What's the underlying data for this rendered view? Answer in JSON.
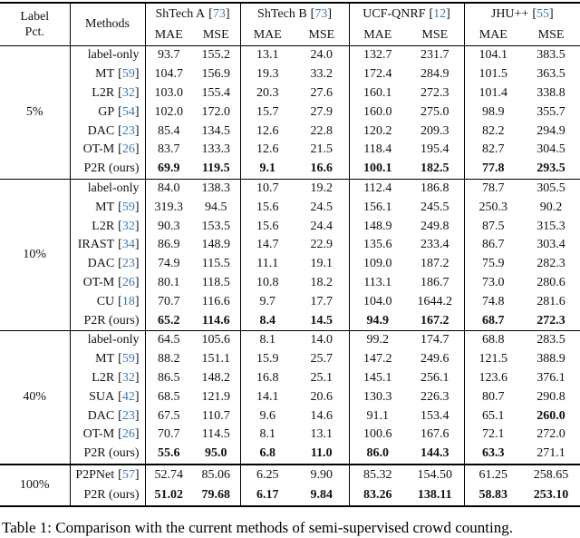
{
  "table": {
    "header": {
      "label_pct_line1": "Label",
      "label_pct_line2": "Pct.",
      "methods": "Methods",
      "metrics": [
        "MAE",
        "MSE"
      ],
      "datasets": [
        {
          "name": "ShTech A",
          "cite": "73"
        },
        {
          "name": "ShTech B",
          "cite": "73"
        },
        {
          "name": "UCF-QNRF",
          "cite": "12"
        },
        {
          "name": "JHU++",
          "cite": "55"
        }
      ]
    },
    "blocks": [
      {
        "pct": "5%",
        "rows": [
          {
            "method": "label-only",
            "cite": null,
            "values": [
              "93.7",
              "155.2",
              "13.1",
              "24.0",
              "132.7",
              "231.7",
              "104.1",
              "383.5"
            ],
            "bold": []
          },
          {
            "method": "MT",
            "cite": "59",
            "values": [
              "104.7",
              "156.9",
              "19.3",
              "33.2",
              "172.4",
              "284.9",
              "101.5",
              "363.5"
            ],
            "bold": []
          },
          {
            "method": "L2R",
            "cite": "32",
            "values": [
              "103.0",
              "155.4",
              "20.3",
              "27.6",
              "160.1",
              "272.3",
              "101.4",
              "338.8"
            ],
            "bold": []
          },
          {
            "method": "GP",
            "cite": "54",
            "values": [
              "102.0",
              "172.0",
              "15.7",
              "27.9",
              "160.0",
              "275.0",
              "98.9",
              "355.7"
            ],
            "bold": []
          },
          {
            "method": "DAC",
            "cite": "23",
            "values": [
              "85.4",
              "134.5",
              "12.6",
              "22.8",
              "120.2",
              "209.3",
              "82.2",
              "294.9"
            ],
            "bold": []
          },
          {
            "method": "OT-M",
            "cite": "26",
            "values": [
              "83.7",
              "133.3",
              "12.6",
              "21.5",
              "118.4",
              "195.4",
              "82.7",
              "304.5"
            ],
            "bold": []
          },
          {
            "method": "P2R (ours)",
            "cite": null,
            "values": [
              "69.9",
              "119.5",
              "9.1",
              "16.6",
              "100.1",
              "182.5",
              "77.8",
              "293.5"
            ],
            "bold": [
              0,
              1,
              2,
              3,
              4,
              5,
              6,
              7
            ]
          }
        ]
      },
      {
        "pct": "10%",
        "rows": [
          {
            "method": "label-only",
            "cite": null,
            "values": [
              "84.0",
              "138.3",
              "10.7",
              "19.2",
              "112.4",
              "186.8",
              "78.7",
              "305.5"
            ],
            "bold": []
          },
          {
            "method": "MT",
            "cite": "59",
            "values": [
              "319.3",
              "94.5",
              "15.6",
              "24.5",
              "156.1",
              "245.5",
              "250.3",
              "90.2"
            ],
            "bold": []
          },
          {
            "method": "L2R",
            "cite": "32",
            "values": [
              "90.3",
              "153.5",
              "15.6",
              "24.4",
              "148.9",
              "249.8",
              "87.5",
              "315.3"
            ],
            "bold": []
          },
          {
            "method": "IRAST",
            "cite": "34",
            "values": [
              "86.9",
              "148.9",
              "14.7",
              "22.9",
              "135.6",
              "233.4",
              "86.7",
              "303.4"
            ],
            "bold": []
          },
          {
            "method": "DAC",
            "cite": "23",
            "values": [
              "74.9",
              "115.5",
              "11.1",
              "19.1",
              "109.0",
              "187.2",
              "75.9",
              "282.3"
            ],
            "bold": []
          },
          {
            "method": "OT-M",
            "cite": "26",
            "values": [
              "80.1",
              "118.5",
              "10.8",
              "18.2",
              "113.1",
              "186.7",
              "73.0",
              "280.6"
            ],
            "bold": []
          },
          {
            "method": "CU",
            "cite": "18",
            "values": [
              "70.7",
              "116.6",
              "9.7",
              "17.7",
              "104.0",
              "1644.2",
              "74.8",
              "281.6"
            ],
            "bold": []
          },
          {
            "method": "P2R (ours)",
            "cite": null,
            "values": [
              "65.2",
              "114.6",
              "8.4",
              "14.5",
              "94.9",
              "167.2",
              "68.7",
              "272.3"
            ],
            "bold": [
              0,
              1,
              2,
              3,
              4,
              5,
              6,
              7
            ]
          }
        ]
      },
      {
        "pct": "40%",
        "rows": [
          {
            "method": "label-only",
            "cite": null,
            "values": [
              "64.5",
              "105.6",
              "8.1",
              "14.0",
              "99.2",
              "174.7",
              "68.8",
              "283.5"
            ],
            "bold": []
          },
          {
            "method": "MT",
            "cite": "59",
            "values": [
              "88.2",
              "151.1",
              "15.9",
              "25.7",
              "147.2",
              "249.6",
              "121.5",
              "388.9"
            ],
            "bold": []
          },
          {
            "method": "L2R",
            "cite": "32",
            "values": [
              "86.5",
              "148.2",
              "16.8",
              "25.1",
              "145.1",
              "256.1",
              "123.6",
              "376.1"
            ],
            "bold": []
          },
          {
            "method": "SUA",
            "cite": "42",
            "values": [
              "68.5",
              "121.9",
              "14.1",
              "20.6",
              "130.3",
              "226.3",
              "80.7",
              "290.8"
            ],
            "bold": []
          },
          {
            "method": "DAC",
            "cite": "23",
            "values": [
              "67.5",
              "110.7",
              "9.6",
              "14.6",
              "91.1",
              "153.4",
              "65.1",
              "260.0"
            ],
            "bold": [
              7
            ]
          },
          {
            "method": "OT-M",
            "cite": "26",
            "values": [
              "70.7",
              "114.5",
              "8.1",
              "13.1",
              "100.6",
              "167.6",
              "72.1",
              "272.0"
            ],
            "bold": []
          },
          {
            "method": "P2R (ours)",
            "cite": null,
            "values": [
              "55.6",
              "95.0",
              "6.8",
              "11.0",
              "86.0",
              "144.3",
              "63.3",
              "271.1"
            ],
            "bold": [
              0,
              1,
              2,
              3,
              4,
              5,
              6
            ]
          }
        ]
      },
      {
        "pct": "100%",
        "thick_top": true,
        "rows": [
          {
            "method": "P2PNet",
            "cite": "57",
            "values": [
              "52.74",
              "85.06",
              "6.25",
              "9.90",
              "85.32",
              "154.50",
              "61.25",
              "258.65"
            ],
            "bold": []
          },
          {
            "method": "P2R (ours)",
            "cite": null,
            "values": [
              "51.02",
              "79.68",
              "6.17",
              "9.84",
              "83.26",
              "138.11",
              "58.83",
              "253.10"
            ],
            "bold": [
              0,
              1,
              2,
              3,
              4,
              5,
              6,
              7
            ]
          }
        ]
      }
    ]
  },
  "caption": {
    "text": "Table 1: Comparison with the current methods of semi-supervised crowd counting."
  },
  "colors": {
    "cite_blue": "#3b77bc",
    "rule_black": "#000000"
  }
}
